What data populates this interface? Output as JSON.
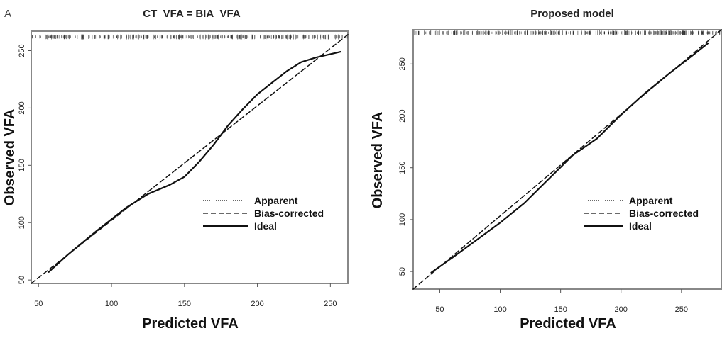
{
  "panel_label": "A",
  "chart_data": [
    {
      "type": "line",
      "title": "CT_VFA = BIA_VFA",
      "xlabel": "Predicted VFA",
      "ylabel": "Observed VFA",
      "xlim": [
        45,
        262
      ],
      "ylim": [
        47,
        267
      ],
      "xticks": [
        50,
        100,
        150,
        200,
        250
      ],
      "yticks": [
        50,
        100,
        150,
        200,
        250
      ],
      "grid": false,
      "legend_position": "bottom-right",
      "series": [
        {
          "name": "Apparent",
          "style": "dotted",
          "x": [],
          "y": []
        },
        {
          "name": "Bias-corrected",
          "style": "dashed",
          "x": [
            45,
            262
          ],
          "y": [
            47,
            264
          ]
        },
        {
          "name": "Ideal",
          "style": "solid",
          "x": [
            57,
            70,
            90,
            110,
            125,
            140,
            150,
            160,
            170,
            180,
            190,
            200,
            210,
            220,
            230,
            240,
            250,
            257
          ],
          "y": [
            57,
            72,
            93,
            113,
            125,
            133,
            140,
            153,
            168,
            185,
            199,
            212,
            222,
            232,
            240,
            244,
            247,
            249
          ]
        }
      ],
      "rug_y": 262
    },
    {
      "type": "line",
      "title": "Proposed model",
      "xlabel": "Predicted VFA",
      "ylabel": "Observed VFA",
      "xlim": [
        28,
        283
      ],
      "ylim": [
        33,
        283
      ],
      "xticks": [
        50,
        100,
        150,
        200,
        250
      ],
      "yticks": [
        50,
        100,
        150,
        200,
        250
      ],
      "grid": false,
      "legend_position": "bottom-right",
      "series": [
        {
          "name": "Apparent",
          "style": "dotted",
          "x": [],
          "y": []
        },
        {
          "name": "Bias-corrected",
          "style": "dashed",
          "x": [
            28,
            283
          ],
          "y": [
            33,
            283
          ]
        },
        {
          "name": "Ideal",
          "style": "solid",
          "x": [
            43,
            60,
            80,
            100,
            120,
            140,
            160,
            170,
            180,
            200,
            220,
            240,
            260,
            272
          ],
          "y": [
            49,
            63,
            80,
            97,
            116,
            139,
            162,
            170,
            178,
            201,
            222,
            241,
            259,
            270
          ]
        }
      ],
      "rug_y": 280
    }
  ]
}
